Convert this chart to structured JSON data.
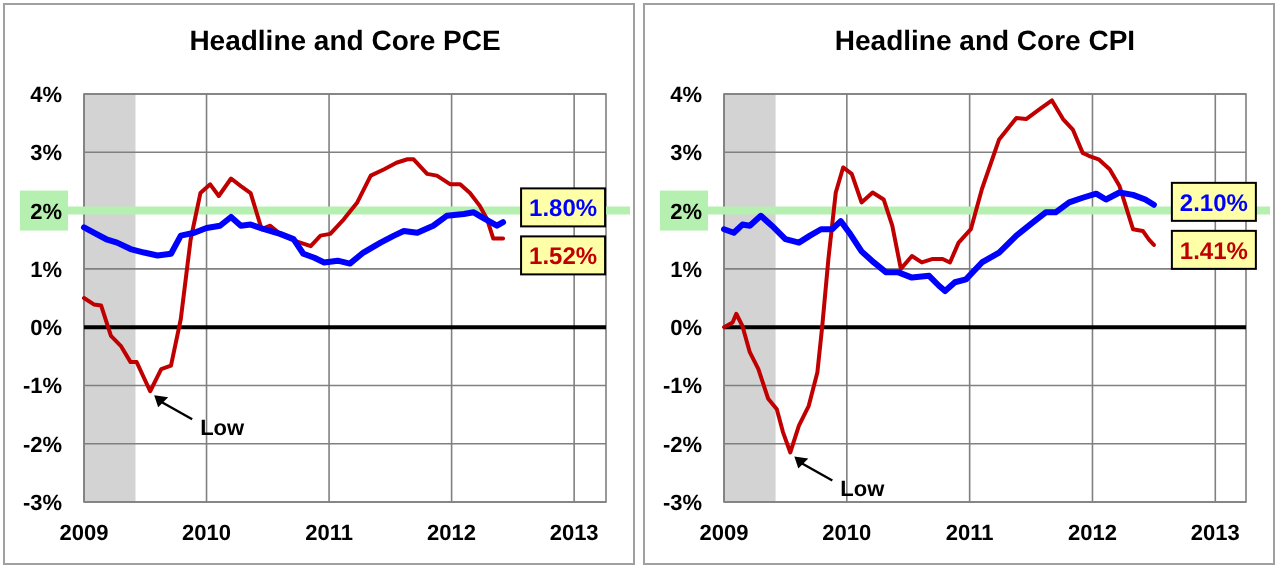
{
  "chart_data": [
    {
      "type": "line",
      "title": "Headline and Core PCE",
      "xlim": [
        2009,
        2013.26
      ],
      "xticks": [
        2009,
        2010,
        2011,
        2012,
        2013
      ],
      "ylim": [
        -3,
        4
      ],
      "yticks": [
        {
          "value": -3,
          "label": "-3%"
        },
        {
          "value": -2,
          "label": "-2%"
        },
        {
          "value": -1,
          "label": "-1%"
        },
        {
          "value": 0,
          "label": "0%"
        },
        {
          "value": 1,
          "label": "1%"
        },
        {
          "value": 2,
          "label": "2%"
        },
        {
          "value": 3,
          "label": "3%"
        },
        {
          "value": 4,
          "label": "4%"
        }
      ],
      "grid": true,
      "bands": [
        {
          "axis": "x",
          "from": 2009,
          "to": 2009.42,
          "color": "#d3d3d3"
        }
      ],
      "ref_lines": [
        {
          "axis": "y",
          "value": 2,
          "color": "#b6f0b0"
        },
        {
          "axis": "y",
          "value": 0,
          "color": "#000000"
        }
      ],
      "annotations": [
        {
          "text": "Low",
          "x": 2009.54,
          "y": -1.1
        }
      ],
      "series": [
        {
          "color": "#c00000",
          "x": [
            2009,
            2009.08,
            2009.14,
            2009.22,
            2009.3,
            2009.38,
            2009.43,
            2009.54,
            2009.63,
            2009.71,
            2009.79,
            2009.87,
            2009.95,
            2010.03,
            2010.1,
            2010.2,
            2010.28,
            2010.36,
            2010.45,
            2010.52,
            2010.6,
            2010.71,
            2010.85,
            2010.93,
            2011.01,
            2011.12,
            2011.23,
            2011.34,
            2011.45,
            2011.55,
            2011.64,
            2011.69,
            2011.8,
            2011.88,
            2011.99,
            2012.07,
            2012.15,
            2012.23,
            2012.29,
            2012.34,
            2012.42
          ],
          "values": [
            0.5,
            0.39,
            0.37,
            -0.15,
            -0.32,
            -0.6,
            -0.6,
            -1.1,
            -0.72,
            -0.66,
            0.14,
            1.5,
            2.3,
            2.45,
            2.25,
            2.55,
            2.42,
            2.3,
            1.68,
            1.74,
            1.6,
            1.49,
            1.39,
            1.57,
            1.6,
            1.85,
            2.14,
            2.6,
            2.71,
            2.82,
            2.88,
            2.88,
            2.63,
            2.6,
            2.45,
            2.45,
            2.3,
            2.08,
            1.85,
            1.52,
            1.52
          ],
          "value_labels": [
            null,
            null,
            null,
            null,
            null,
            null,
            null,
            null,
            null,
            null,
            null,
            null,
            null,
            null,
            null,
            null,
            null,
            null,
            null,
            null,
            null,
            null,
            null,
            null,
            null,
            null,
            null,
            null,
            null,
            null,
            null,
            null,
            null,
            null,
            null,
            null,
            null,
            null,
            null,
            null,
            "1.52%"
          ]
        },
        {
          "color": "#0000ff",
          "x": [
            2009,
            2009.08,
            2009.19,
            2009.27,
            2009.38,
            2009.49,
            2009.6,
            2009.71,
            2009.79,
            2009.9,
            2010,
            2010.11,
            2010.2,
            2010.28,
            2010.36,
            2010.47,
            2010.6,
            2010.71,
            2010.79,
            2010.88,
            2010.96,
            2011.07,
            2011.17,
            2011.28,
            2011.42,
            2011.53,
            2011.61,
            2011.72,
            2011.85,
            2011.96,
            2012.1,
            2012.18,
            2012.26,
            2012.37,
            2012.42
          ],
          "values": [
            1.71,
            1.62,
            1.5,
            1.45,
            1.34,
            1.28,
            1.23,
            1.26,
            1.57,
            1.62,
            1.7,
            1.74,
            1.89,
            1.74,
            1.76,
            1.68,
            1.6,
            1.51,
            1.26,
            1.19,
            1.11,
            1.14,
            1.09,
            1.28,
            1.45,
            1.57,
            1.65,
            1.62,
            1.74,
            1.91,
            1.94,
            1.97,
            1.87,
            1.74,
            1.8
          ],
          "value_labels": [
            null,
            null,
            null,
            null,
            null,
            null,
            null,
            null,
            null,
            null,
            null,
            null,
            null,
            null,
            null,
            null,
            null,
            null,
            null,
            null,
            null,
            null,
            null,
            null,
            null,
            null,
            null,
            null,
            null,
            null,
            null,
            null,
            null,
            null,
            "1.80%"
          ]
        }
      ]
    },
    {
      "type": "line",
      "title": "Headline and Core CPI",
      "xlim": [
        2009,
        2013.25
      ],
      "xticks": [
        2009,
        2010,
        2011,
        2012,
        2013
      ],
      "ylim": [
        -3,
        4
      ],
      "yticks": [
        {
          "value": -3,
          "label": "-3%"
        },
        {
          "value": -2,
          "label": "-2%"
        },
        {
          "value": -1,
          "label": "-1%"
        },
        {
          "value": 0,
          "label": "0%"
        },
        {
          "value": 1,
          "label": "1%"
        },
        {
          "value": 2,
          "label": "2%"
        },
        {
          "value": 3,
          "label": "3%"
        },
        {
          "value": 4,
          "label": "4%"
        }
      ],
      "grid": true,
      "bands": [
        {
          "axis": "x",
          "from": 2009,
          "to": 2009.42,
          "color": "#d3d3d3"
        }
      ],
      "ref_lines": [
        {
          "axis": "y",
          "value": 2,
          "color": "#b6f0b0"
        },
        {
          "axis": "y",
          "value": 0,
          "color": "#000000"
        }
      ],
      "annotations": [
        {
          "text": "Low",
          "x": 2009.54,
          "y": -2.15
        }
      ],
      "series": [
        {
          "color": "#c00000",
          "x": [
            2009,
            2009.07,
            2009.1,
            2009.15,
            2009.21,
            2009.28,
            2009.36,
            2009.43,
            2009.48,
            2009.54,
            2009.61,
            2009.69,
            2009.76,
            2009.8,
            2009.85,
            2009.91,
            2009.97,
            2010.04,
            2010.12,
            2010.21,
            2010.3,
            2010.37,
            2010.44,
            2010.53,
            2010.61,
            2010.7,
            2010.78,
            2010.84,
            2010.91,
            2011.01,
            2011.1,
            2011.24,
            2011.38,
            2011.46,
            2011.57,
            2011.67,
            2011.76,
            2011.84,
            2011.92,
            2011.97,
            2012.05,
            2012.14,
            2012.22,
            2012.33,
            2012.41,
            2012.46,
            2012.5
          ],
          "values": [
            0,
            0.08,
            0.23,
            0.02,
            -0.43,
            -0.72,
            -1.23,
            -1.41,
            -1.8,
            -2.15,
            -1.69,
            -1.35,
            -0.78,
            0.02,
            1.17,
            2.31,
            2.74,
            2.63,
            2.14,
            2.31,
            2.19,
            1.74,
            1,
            1.22,
            1.11,
            1.17,
            1.17,
            1.11,
            1.45,
            1.68,
            2.37,
            3.22,
            3.59,
            3.57,
            3.74,
            3.89,
            3.57,
            3.39,
            2.99,
            2.94,
            2.88,
            2.71,
            2.42,
            1.68,
            1.65,
            1.5,
            1.41
          ],
          "value_labels": [
            null,
            null,
            null,
            null,
            null,
            null,
            null,
            null,
            null,
            null,
            null,
            null,
            null,
            null,
            null,
            null,
            null,
            null,
            null,
            null,
            null,
            null,
            null,
            null,
            null,
            null,
            null,
            null,
            null,
            null,
            null,
            null,
            null,
            null,
            null,
            null,
            null,
            null,
            null,
            null,
            null,
            null,
            null,
            null,
            null,
            null,
            "1.41%"
          ]
        },
        {
          "color": "#0000ff",
          "x": [
            2009,
            2009.08,
            2009.15,
            2009.21,
            2009.3,
            2009.39,
            2009.5,
            2009.61,
            2009.7,
            2009.79,
            2009.88,
            2009.95,
            2010.02,
            2010.12,
            2010.22,
            2010.32,
            2010.42,
            2010.53,
            2010.67,
            2010.75,
            2010.8,
            2010.88,
            2010.97,
            2011.1,
            2011.24,
            2011.38,
            2011.51,
            2011.62,
            2011.7,
            2011.81,
            2011.92,
            2012.03,
            2012.11,
            2012.22,
            2012.33,
            2012.43,
            2012.5
          ],
          "values": [
            1.68,
            1.62,
            1.76,
            1.74,
            1.91,
            1.74,
            1.51,
            1.45,
            1.57,
            1.68,
            1.68,
            1.82,
            1.62,
            1.3,
            1.11,
            0.94,
            0.94,
            0.85,
            0.88,
            0.71,
            0.62,
            0.77,
            0.82,
            1.11,
            1.28,
            1.57,
            1.79,
            1.97,
            1.97,
            2.14,
            2.22,
            2.29,
            2.19,
            2.31,
            2.27,
            2.19,
            2.1
          ],
          "value_labels": [
            null,
            null,
            null,
            null,
            null,
            null,
            null,
            null,
            null,
            null,
            null,
            null,
            null,
            null,
            null,
            null,
            null,
            null,
            null,
            null,
            null,
            null,
            null,
            null,
            null,
            null,
            null,
            null,
            null,
            null,
            null,
            null,
            null,
            null,
            null,
            null,
            "2.10%"
          ]
        }
      ]
    }
  ]
}
